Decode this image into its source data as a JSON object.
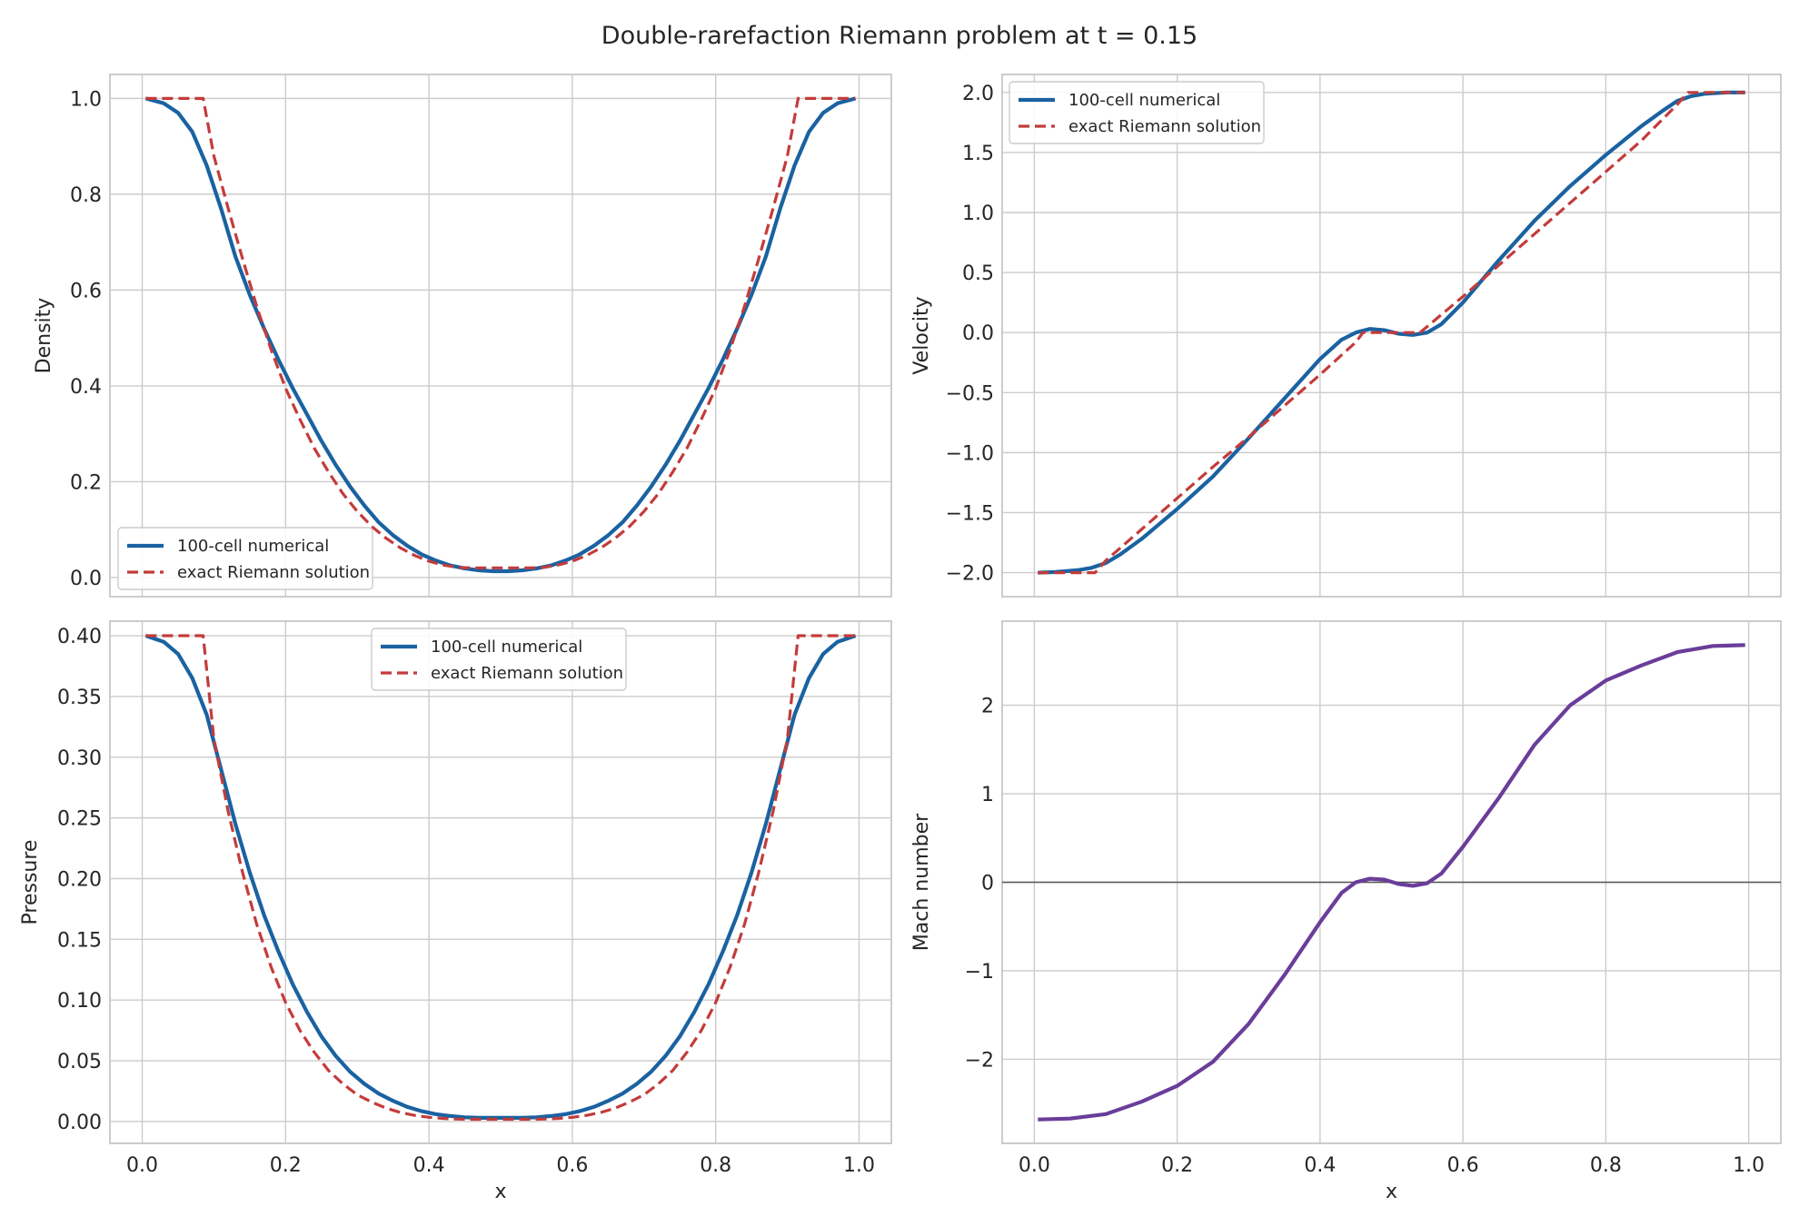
{
  "suptitle": "Double-rarefaction Riemann problem at t = 0.15",
  "colors": {
    "numerical": "#1a62a1",
    "exact": "#c43b3b",
    "mach": "#6a3d9a",
    "grid": "#cccccc",
    "zero_line": "#555555"
  },
  "chart_data": [
    {
      "type": "line",
      "ylabel": "Density",
      "xlabel": "",
      "xlim": [
        -0.045,
        1.045
      ],
      "ylim": [
        -0.04,
        1.05
      ],
      "xticks": [
        0.0,
        0.2,
        0.4,
        0.6,
        0.8,
        1.0
      ],
      "xticklabels": [],
      "yticks": [
        0.0,
        0.2,
        0.4,
        0.6,
        0.8,
        1.0
      ],
      "yticklabels": [
        "0.0",
        "0.2",
        "0.4",
        "0.6",
        "0.8",
        "1.0"
      ],
      "legend": {
        "position": "lower-left",
        "labels": [
          "100-cell numerical",
          "exact Riemann solution"
        ]
      },
      "series": [
        {
          "name": "100-cell numerical",
          "style": "solid",
          "x": [
            0.005,
            0.03,
            0.05,
            0.07,
            0.09,
            0.11,
            0.13,
            0.15,
            0.17,
            0.19,
            0.21,
            0.23,
            0.25,
            0.27,
            0.29,
            0.31,
            0.33,
            0.35,
            0.37,
            0.39,
            0.41,
            0.43,
            0.45,
            0.47,
            0.49,
            0.5,
            0.51,
            0.53,
            0.55,
            0.57,
            0.59,
            0.61,
            0.63,
            0.65,
            0.67,
            0.69,
            0.71,
            0.73,
            0.75,
            0.77,
            0.79,
            0.81,
            0.83,
            0.85,
            0.87,
            0.89,
            0.91,
            0.93,
            0.95,
            0.97,
            0.995
          ],
          "y": [
            1.0,
            0.99,
            0.97,
            0.93,
            0.86,
            0.77,
            0.67,
            0.59,
            0.52,
            0.455,
            0.395,
            0.34,
            0.285,
            0.235,
            0.19,
            0.15,
            0.115,
            0.088,
            0.066,
            0.048,
            0.035,
            0.025,
            0.019,
            0.015,
            0.013,
            0.013,
            0.013,
            0.015,
            0.019,
            0.025,
            0.035,
            0.048,
            0.066,
            0.088,
            0.115,
            0.15,
            0.19,
            0.235,
            0.285,
            0.34,
            0.395,
            0.455,
            0.52,
            0.59,
            0.67,
            0.77,
            0.86,
            0.93,
            0.97,
            0.99,
            1.0
          ]
        },
        {
          "name": "exact Riemann solution",
          "style": "dashed",
          "x": [
            0.005,
            0.085,
            0.1,
            0.12,
            0.14,
            0.16,
            0.18,
            0.2,
            0.22,
            0.24,
            0.26,
            0.28,
            0.3,
            0.32,
            0.34,
            0.36,
            0.38,
            0.4,
            0.42,
            0.44,
            0.46,
            0.5,
            0.54,
            0.56,
            0.58,
            0.6,
            0.62,
            0.64,
            0.66,
            0.68,
            0.7,
            0.72,
            0.74,
            0.76,
            0.78,
            0.8,
            0.82,
            0.84,
            0.86,
            0.88,
            0.9,
            0.915,
            0.995
          ],
          "y": [
            1.0,
            1.0,
            0.88,
            0.77,
            0.665,
            0.565,
            0.475,
            0.395,
            0.33,
            0.27,
            0.22,
            0.175,
            0.138,
            0.107,
            0.082,
            0.062,
            0.046,
            0.034,
            0.026,
            0.021,
            0.02,
            0.02,
            0.02,
            0.021,
            0.026,
            0.034,
            0.046,
            0.062,
            0.082,
            0.107,
            0.138,
            0.175,
            0.22,
            0.27,
            0.33,
            0.395,
            0.475,
            0.565,
            0.665,
            0.77,
            0.88,
            1.0,
            1.0
          ]
        }
      ]
    },
    {
      "type": "line",
      "ylabel": "Velocity",
      "xlabel": "",
      "xlim": [
        -0.045,
        1.045
      ],
      "ylim": [
        -2.2,
        2.15
      ],
      "xticks": [
        0.0,
        0.2,
        0.4,
        0.6,
        0.8,
        1.0
      ],
      "xticklabels": [],
      "yticks": [
        -2.0,
        -1.5,
        -1.0,
        -0.5,
        0.0,
        0.5,
        1.0,
        1.5,
        2.0
      ],
      "yticklabels": [
        "−2.0",
        "−1.5",
        "−1.0",
        "−0.5",
        "0.0",
        "0.5",
        "1.0",
        "1.5",
        "2.0"
      ],
      "legend": {
        "position": "upper-left",
        "labels": [
          "100-cell numerical",
          "exact Riemann solution"
        ]
      },
      "series": [
        {
          "name": "100-cell numerical",
          "style": "solid",
          "x": [
            0.005,
            0.03,
            0.06,
            0.08,
            0.1,
            0.12,
            0.15,
            0.2,
            0.25,
            0.3,
            0.35,
            0.4,
            0.43,
            0.45,
            0.47,
            0.49,
            0.51,
            0.53,
            0.55,
            0.57,
            0.6,
            0.65,
            0.7,
            0.75,
            0.8,
            0.85,
            0.88,
            0.9,
            0.92,
            0.94,
            0.97,
            0.995
          ],
          "y": [
            -2.0,
            -1.995,
            -1.98,
            -1.96,
            -1.92,
            -1.85,
            -1.72,
            -1.47,
            -1.2,
            -0.88,
            -0.55,
            -0.22,
            -0.06,
            0.0,
            0.03,
            0.02,
            -0.01,
            -0.02,
            0.0,
            0.07,
            0.25,
            0.6,
            0.93,
            1.22,
            1.48,
            1.72,
            1.85,
            1.93,
            1.97,
            1.99,
            2.0,
            2.0
          ]
        },
        {
          "name": "exact Riemann solution",
          "style": "dashed",
          "x": [
            0.005,
            0.085,
            0.1,
            0.15,
            0.2,
            0.25,
            0.3,
            0.35,
            0.4,
            0.45,
            0.46,
            0.5,
            0.54,
            0.55,
            0.6,
            0.65,
            0.7,
            0.75,
            0.8,
            0.85,
            0.9,
            0.915,
            0.995
          ],
          "y": [
            -2.0,
            -2.0,
            -1.9,
            -1.64,
            -1.38,
            -1.12,
            -0.87,
            -0.61,
            -0.35,
            -0.08,
            0.0,
            0.0,
            0.0,
            0.05,
            0.3,
            0.56,
            0.82,
            1.08,
            1.34,
            1.6,
            1.9,
            2.0,
            2.0
          ]
        }
      ]
    },
    {
      "type": "line",
      "ylabel": "Pressure",
      "xlabel": "x",
      "xlim": [
        -0.045,
        1.045
      ],
      "ylim": [
        -0.018,
        0.412
      ],
      "xticks": [
        0.0,
        0.2,
        0.4,
        0.6,
        0.8,
        1.0
      ],
      "xticklabels": [
        "0.0",
        "0.2",
        "0.4",
        "0.6",
        "0.8",
        "1.0"
      ],
      "yticks": [
        0.0,
        0.05,
        0.1,
        0.15,
        0.2,
        0.25,
        0.3,
        0.35,
        0.4
      ],
      "yticklabels": [
        "0.00",
        "0.05",
        "0.10",
        "0.15",
        "0.20",
        "0.25",
        "0.30",
        "0.35",
        "0.40"
      ],
      "legend": {
        "position": "upper-center",
        "labels": [
          "100-cell numerical",
          "exact Riemann solution"
        ]
      },
      "series": [
        {
          "name": "100-cell numerical",
          "style": "solid",
          "x": [
            0.005,
            0.03,
            0.05,
            0.07,
            0.09,
            0.11,
            0.13,
            0.15,
            0.17,
            0.19,
            0.21,
            0.23,
            0.25,
            0.27,
            0.29,
            0.31,
            0.33,
            0.35,
            0.37,
            0.39,
            0.41,
            0.43,
            0.45,
            0.47,
            0.5,
            0.53,
            0.55,
            0.57,
            0.59,
            0.61,
            0.63,
            0.65,
            0.67,
            0.69,
            0.71,
            0.73,
            0.75,
            0.77,
            0.79,
            0.81,
            0.83,
            0.85,
            0.87,
            0.89,
            0.91,
            0.93,
            0.95,
            0.97,
            0.995
          ],
          "y": [
            0.4,
            0.395,
            0.385,
            0.365,
            0.335,
            0.29,
            0.245,
            0.205,
            0.17,
            0.14,
            0.113,
            0.09,
            0.07,
            0.054,
            0.041,
            0.031,
            0.023,
            0.017,
            0.012,
            0.0085,
            0.006,
            0.0045,
            0.0035,
            0.003,
            0.003,
            0.003,
            0.0035,
            0.0045,
            0.006,
            0.0085,
            0.012,
            0.017,
            0.023,
            0.031,
            0.041,
            0.054,
            0.07,
            0.09,
            0.113,
            0.14,
            0.17,
            0.205,
            0.245,
            0.29,
            0.335,
            0.365,
            0.385,
            0.395,
            0.4
          ]
        },
        {
          "name": "exact Riemann solution",
          "style": "dashed",
          "x": [
            0.005,
            0.085,
            0.1,
            0.12,
            0.14,
            0.16,
            0.18,
            0.2,
            0.22,
            0.24,
            0.26,
            0.28,
            0.3,
            0.32,
            0.34,
            0.36,
            0.38,
            0.4,
            0.42,
            0.44,
            0.46,
            0.5,
            0.54,
            0.56,
            0.58,
            0.6,
            0.62,
            0.64,
            0.66,
            0.68,
            0.7,
            0.72,
            0.74,
            0.76,
            0.78,
            0.8,
            0.82,
            0.84,
            0.86,
            0.88,
            0.9,
            0.915,
            0.995
          ],
          "y": [
            0.4,
            0.4,
            0.315,
            0.255,
            0.205,
            0.162,
            0.127,
            0.098,
            0.075,
            0.057,
            0.042,
            0.031,
            0.022,
            0.016,
            0.011,
            0.0075,
            0.005,
            0.0035,
            0.0025,
            0.002,
            0.0018,
            0.0018,
            0.0018,
            0.002,
            0.0025,
            0.0035,
            0.005,
            0.0075,
            0.011,
            0.016,
            0.022,
            0.031,
            0.042,
            0.057,
            0.075,
            0.098,
            0.127,
            0.162,
            0.205,
            0.255,
            0.315,
            0.4,
            0.4
          ]
        }
      ]
    },
    {
      "type": "line",
      "ylabel": "Mach number",
      "xlabel": "x",
      "xlim": [
        -0.045,
        1.045
      ],
      "ylim": [
        -2.95,
        2.95
      ],
      "xticks": [
        0.0,
        0.2,
        0.4,
        0.6,
        0.8,
        1.0
      ],
      "xticklabels": [
        "0.0",
        "0.2",
        "0.4",
        "0.6",
        "0.8",
        "1.0"
      ],
      "yticks": [
        -2,
        -1,
        0,
        1,
        2
      ],
      "yticklabels": [
        "−2",
        "−1",
        "0",
        "1",
        "2"
      ],
      "reference_line": 0,
      "series": [
        {
          "name": "",
          "style": "solid",
          "x": [
            0.005,
            0.05,
            0.1,
            0.15,
            0.2,
            0.25,
            0.3,
            0.35,
            0.4,
            0.43,
            0.45,
            0.47,
            0.49,
            0.51,
            0.53,
            0.55,
            0.57,
            0.6,
            0.65,
            0.7,
            0.75,
            0.8,
            0.85,
            0.9,
            0.95,
            0.995
          ],
          "y": [
            -2.68,
            -2.67,
            -2.62,
            -2.48,
            -2.3,
            -2.03,
            -1.6,
            -1.05,
            -0.45,
            -0.12,
            0.0,
            0.04,
            0.03,
            -0.02,
            -0.04,
            -0.01,
            0.1,
            0.4,
            0.95,
            1.55,
            2.0,
            2.28,
            2.45,
            2.6,
            2.67,
            2.68
          ]
        }
      ]
    }
  ]
}
